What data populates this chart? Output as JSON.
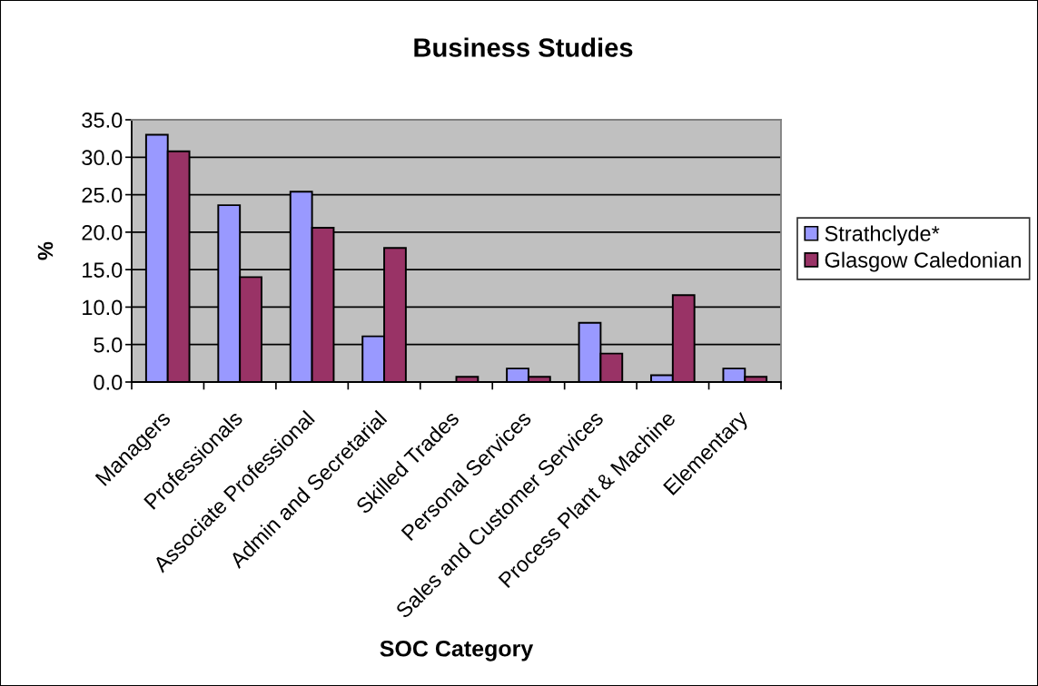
{
  "chart_data": {
    "type": "bar",
    "title": "Business Studies",
    "xlabel": "SOC Category",
    "ylabel": "%",
    "categories": [
      "Managers",
      "Professionals",
      "Associate Professional",
      "Admin and Secretarial",
      "Skilled Trades",
      "Personal Services",
      "Sales and Customer Services",
      "Process Plant & Machine",
      "Elementary"
    ],
    "series": [
      {
        "name": "Strathclyde*",
        "color": "#9999ff",
        "values": [
          33.0,
          23.6,
          25.4,
          6.1,
          null,
          1.8,
          7.9,
          0.9,
          1.8
        ]
      },
      {
        "name": "Glasgow Caledonian",
        "color": "#993366",
        "values": [
          30.8,
          14.0,
          20.6,
          17.9,
          0.7,
          0.7,
          3.8,
          11.6,
          0.7
        ]
      }
    ],
    "ylim": [
      0,
      35
    ],
    "yticks": [
      {
        "value": 0,
        "label": "0.0"
      },
      {
        "value": 5,
        "label": "5.0"
      },
      {
        "value": 10,
        "label": "10.0"
      },
      {
        "value": 15,
        "label": "15.0"
      },
      {
        "value": 20,
        "label": "20.0"
      },
      {
        "value": 25,
        "label": "25.0"
      },
      {
        "value": 30,
        "label": "30.0"
      },
      {
        "value": 35,
        "label": "35.0"
      }
    ],
    "grid": "y",
    "legend": "right"
  }
}
